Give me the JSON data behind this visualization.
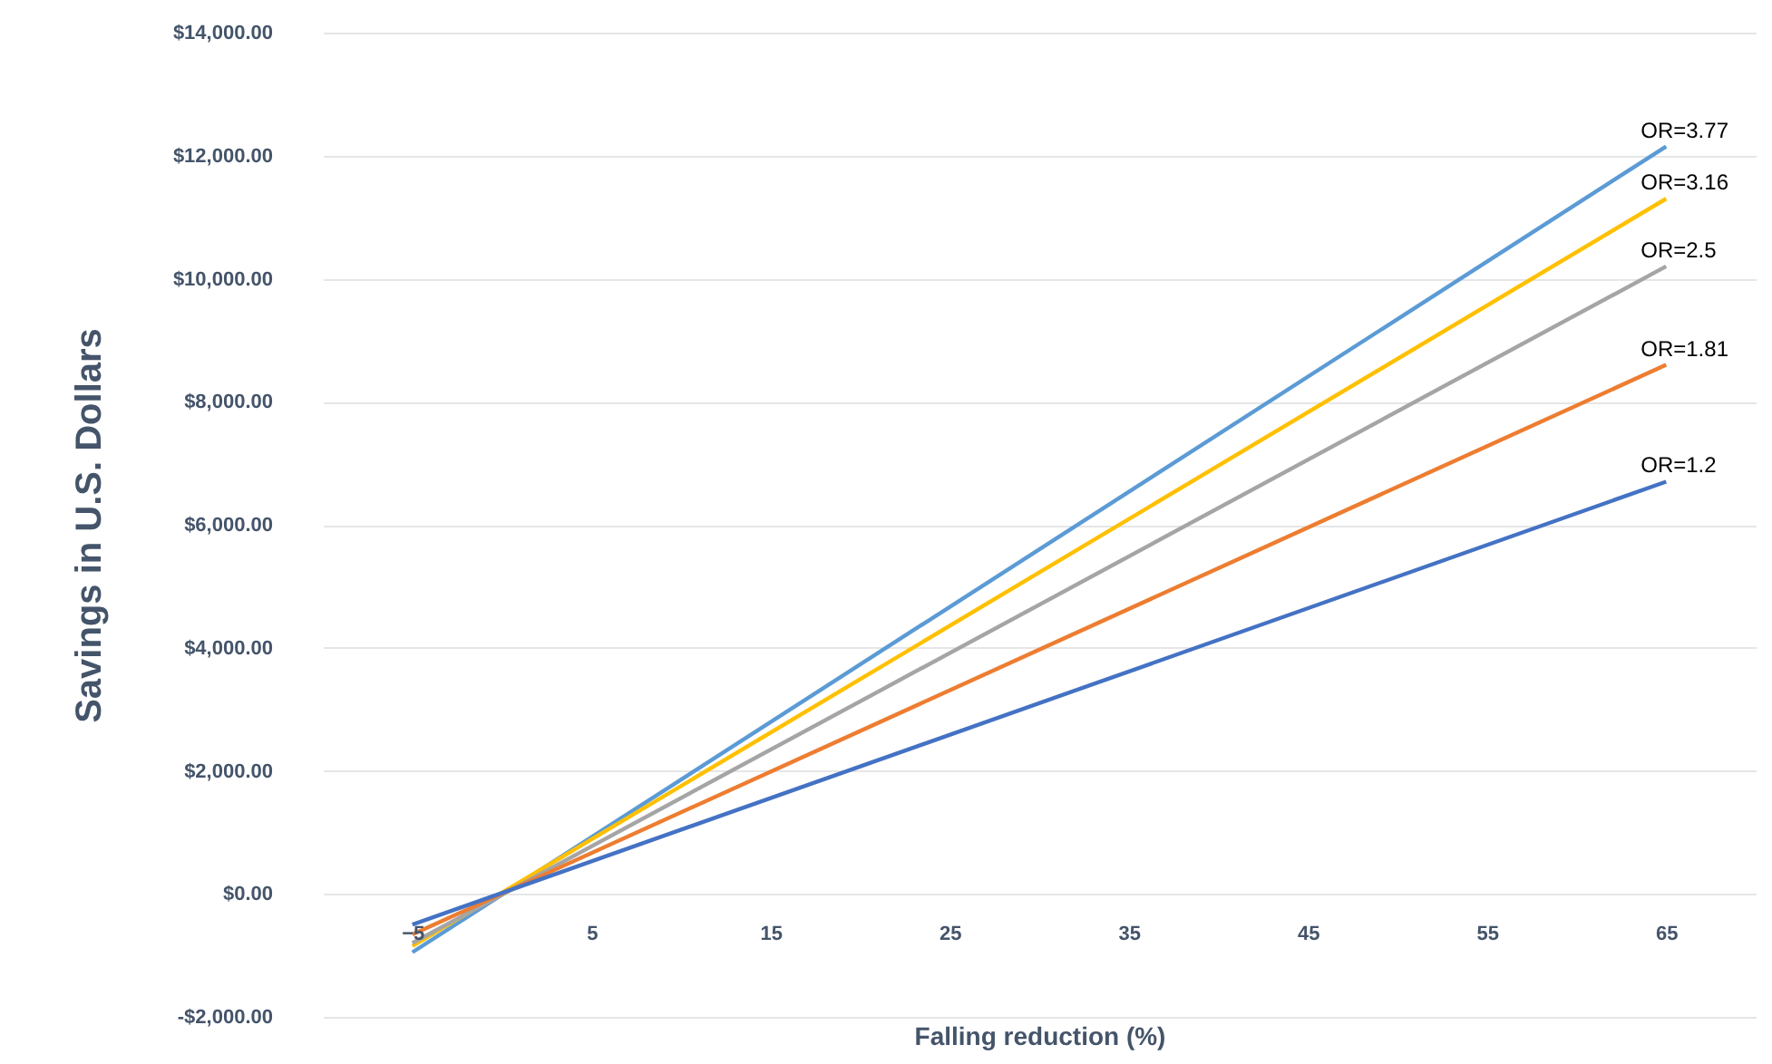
{
  "chart_data": {
    "type": "line",
    "xlabel": "Falling reduction (%)",
    "ylabel": "Savings in U.S. Dollars",
    "x": [
      -5,
      65
    ],
    "series": [
      {
        "name": "OR=3.77",
        "color": "#5b9bd5",
        "values": [
          -950,
          12150
        ]
      },
      {
        "name": "OR=3.16",
        "color": "#ffc000",
        "values": [
          -850,
          11300
        ]
      },
      {
        "name": "OR=2.5",
        "color": "#a5a5a5",
        "values": [
          -800,
          10200
        ]
      },
      {
        "name": "OR=1.81",
        "color": "#ed7d31",
        "values": [
          -660,
          8600
        ]
      },
      {
        "name": "OR=1.2",
        "color": "#4472c4",
        "values": [
          -500,
          6700
        ]
      }
    ],
    "xlim": [
      -10,
      70
    ],
    "xticks": [
      -5,
      5,
      15,
      25,
      35,
      45,
      55,
      65
    ],
    "ylim": [
      -2000,
      14000
    ],
    "yticks": [
      {
        "value": -2000,
        "label": "-$2,000.00"
      },
      {
        "value": 0,
        "label": "$0.00"
      },
      {
        "value": 2000,
        "label": "$2,000.00"
      },
      {
        "value": 4000,
        "label": "$4,000.00"
      },
      {
        "value": 6000,
        "label": "$6,000.00"
      },
      {
        "value": 8000,
        "label": "$8,000.00"
      },
      {
        "value": 10000,
        "label": "$10,000.00"
      },
      {
        "value": 12000,
        "label": "$12,000.00"
      },
      {
        "value": 14000,
        "label": "$14,000.00"
      }
    ],
    "grid": "y",
    "marker": "none",
    "line_style": "solid"
  }
}
